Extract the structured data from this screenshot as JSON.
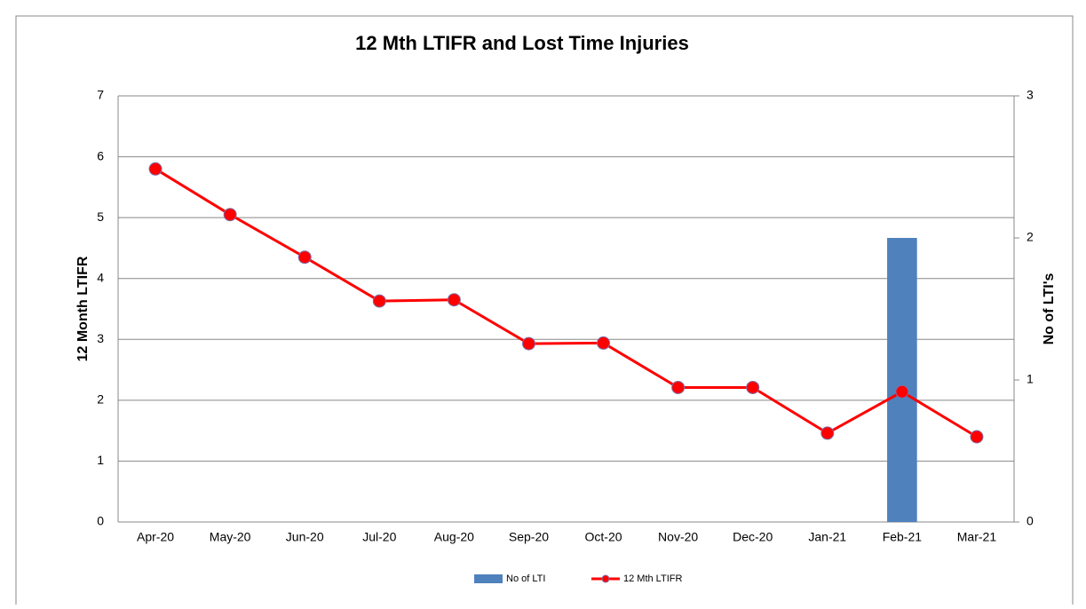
{
  "chart_data": {
    "type": "bar",
    "title": "12 Mth LTIFR and Lost Time Injuries",
    "y_label": "12 Month LTIFR",
    "y2_label": "No of LTI's",
    "categories": [
      "Apr-20",
      "May-20",
      "Jun-20",
      "Jul-20",
      "Aug-20",
      "Sep-20",
      "Oct-20",
      "Nov-20",
      "Dec-20",
      "Jan-21",
      "Feb-21",
      "Mar-21"
    ],
    "series": [
      {
        "name": "No of LTI",
        "type": "bar",
        "axis": "y2",
        "color": "#4f81bd",
        "values": [
          0,
          0,
          0,
          0,
          0,
          0,
          0,
          0,
          0,
          0,
          2,
          0
        ]
      },
      {
        "name": "12 Mth LTIFR",
        "type": "line",
        "color": "#ff0000",
        "values": [
          5.8,
          5.05,
          4.35,
          3.63,
          3.65,
          2.93,
          2.94,
          2.21,
          2.21,
          1.46,
          2.14,
          1.4
        ]
      }
    ],
    "ylim": [
      0,
      7
    ],
    "yticks": [
      0,
      1,
      2,
      3,
      4,
      5,
      6,
      7
    ],
    "y2lim": [
      0,
      3
    ],
    "y2ticks": [
      0,
      1,
      2,
      3
    ],
    "grid": true
  }
}
